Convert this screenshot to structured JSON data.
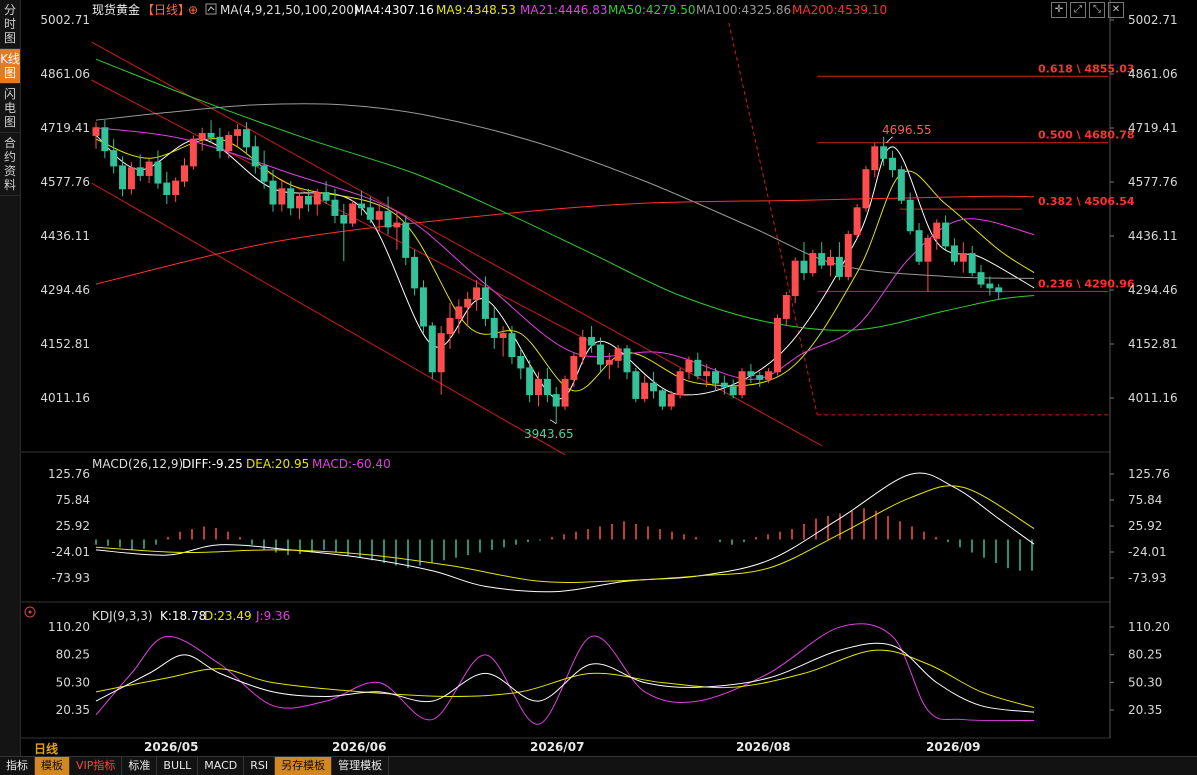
{
  "sidebar": {
    "tabs": [
      "分时图",
      "K线图",
      "闪电图",
      "合约资料"
    ],
    "active": 1
  },
  "header": {
    "symbol": "现货黄金",
    "period": "【日线】",
    "ma_params": "MA(4,9,21,50,100,200)",
    "ma": [
      {
        "label": "MA4:4307.16",
        "color": "#ffffff"
      },
      {
        "label": "MA9:4348.53",
        "color": "#e6e600"
      },
      {
        "label": "MA21:4446.83",
        "color": "#e040e0"
      },
      {
        "label": "MA50:4279.50",
        "color": "#33cc33"
      },
      {
        "label": "MA100:4325.86",
        "color": "#9a9a9a"
      },
      {
        "label": "MA200:4539.10",
        "color": "#ff3030"
      }
    ]
  },
  "top_icons": [
    "crosshair-icon",
    "expand-icon",
    "collapse-icon",
    "close-icon"
  ],
  "main_axis": {
    "ticks": [
      "5002.71",
      "4861.06",
      "4719.41",
      "4577.76",
      "4436.11",
      "4294.46",
      "4152.81",
      "4011.16"
    ]
  },
  "annotations": {
    "high_label": "4696.55",
    "low_label": "3943.65"
  },
  "fib": [
    {
      "label": "0.618 \\ 4855.03",
      "value": 4855.03
    },
    {
      "label": "0.500 \\ 4680.78",
      "value": 4680.78
    },
    {
      "label": "0.382 \\ 4506.54",
      "value": 4506.54
    },
    {
      "label": "0.236 \\ 4290.96",
      "value": 4290.96
    }
  ],
  "macd": {
    "title": "MACD(26,12,9)",
    "diff": "DIFF:-9.25",
    "dea": "DEA:20.95",
    "macd": "MACD:-60.40",
    "ticks": [
      "125.76",
      "75.84",
      "25.92",
      "-24.01",
      "-73.93"
    ]
  },
  "kdj": {
    "title": "KDJ(9,3,3)",
    "k": "K:18.78",
    "d": "D:23.49",
    "j": "J:9.36",
    "ticks": [
      "110.20",
      "80.25",
      "50.30",
      "20.35"
    ]
  },
  "x_labels": [
    "2026/05",
    "2026/06",
    "2026/07",
    "2026/08",
    "2026/09"
  ],
  "period_label": "日线",
  "bottom_bar": [
    "指标",
    "模板",
    "VIP指标",
    "标准",
    "BULL",
    "MACD",
    "RSI",
    "另存模板",
    "管理模板"
  ],
  "chart_data": {
    "type": "candlestick",
    "title": "现货黄金【日线】",
    "ylim": [
      3943.65,
      5002.71
    ],
    "candles_ohlc": [
      [
        4700,
        4735,
        4665,
        4720
      ],
      [
        4720,
        4740,
        4640,
        4660
      ],
      [
        4660,
        4690,
        4600,
        4620
      ],
      [
        4620,
        4645,
        4540,
        4560
      ],
      [
        4560,
        4630,
        4545,
        4615
      ],
      [
        4615,
        4650,
        4580,
        4595
      ],
      [
        4595,
        4640,
        4575,
        4630
      ],
      [
        4630,
        4660,
        4560,
        4575
      ],
      [
        4575,
        4605,
        4520,
        4545
      ],
      [
        4545,
        4590,
        4525,
        4580
      ],
      [
        4580,
        4640,
        4565,
        4620
      ],
      [
        4620,
        4700,
        4610,
        4690
      ],
      [
        4690,
        4720,
        4660,
        4705
      ],
      [
        4705,
        4740,
        4680,
        4695
      ],
      [
        4695,
        4720,
        4640,
        4660
      ],
      [
        4660,
        4710,
        4640,
        4700
      ],
      [
        4700,
        4730,
        4670,
        4715
      ],
      [
        4715,
        4735,
        4650,
        4670
      ],
      [
        4670,
        4700,
        4600,
        4620
      ],
      [
        4620,
        4660,
        4560,
        4580
      ],
      [
        4580,
        4610,
        4500,
        4520
      ],
      [
        4520,
        4580,
        4500,
        4560
      ],
      [
        4560,
        4580,
        4490,
        4510
      ],
      [
        4510,
        4550,
        4480,
        4540
      ],
      [
        4540,
        4560,
        4500,
        4520
      ],
      [
        4520,
        4560,
        4490,
        4550
      ],
      [
        4550,
        4580,
        4520,
        4530
      ],
      [
        4530,
        4560,
        4470,
        4490
      ],
      [
        4490,
        4520,
        4370,
        4470
      ],
      [
        4470,
        4530,
        4460,
        4520
      ],
      [
        4520,
        4555,
        4490,
        4510
      ],
      [
        4510,
        4540,
        4470,
        4480
      ],
      [
        4480,
        4520,
        4450,
        4500
      ],
      [
        4500,
        4540,
        4440,
        4460
      ],
      [
        4460,
        4500,
        4400,
        4470
      ],
      [
        4470,
        4490,
        4360,
        4380
      ],
      [
        4380,
        4400,
        4280,
        4300
      ],
      [
        4300,
        4320,
        4180,
        4200
      ],
      [
        4200,
        4210,
        4060,
        4080
      ],
      [
        4080,
        4200,
        4020,
        4180
      ],
      [
        4180,
        4260,
        4140,
        4220
      ],
      [
        4220,
        4270,
        4180,
        4250
      ],
      [
        4250,
        4290,
        4200,
        4270
      ],
      [
        4270,
        4320,
        4240,
        4300
      ],
      [
        4300,
        4330,
        4200,
        4220
      ],
      [
        4220,
        4250,
        4140,
        4170
      ],
      [
        4170,
        4200,
        4120,
        4180
      ],
      [
        4180,
        4200,
        4100,
        4120
      ],
      [
        4120,
        4140,
        4060,
        4090
      ],
      [
        4090,
        4110,
        4000,
        4020
      ],
      [
        4020,
        4080,
        3990,
        4060
      ],
      [
        4060,
        4090,
        4000,
        4020
      ],
      [
        4020,
        4040,
        3943.65,
        3990
      ],
      [
        3990,
        4070,
        3980,
        4060
      ],
      [
        4060,
        4130,
        4040,
        4120
      ],
      [
        4120,
        4190,
        4100,
        4170
      ],
      [
        4170,
        4200,
        4130,
        4150
      ],
      [
        4150,
        4170,
        4080,
        4100
      ],
      [
        4100,
        4130,
        4060,
        4110
      ],
      [
        4110,
        4150,
        4090,
        4140
      ],
      [
        4140,
        4150,
        4060,
        4080
      ],
      [
        4080,
        4090,
        4000,
        4010
      ],
      [
        4010,
        4070,
        4000,
        4050
      ],
      [
        4050,
        4080,
        4010,
        4030
      ],
      [
        4030,
        4040,
        3980,
        3990
      ],
      [
        3990,
        4030,
        3980,
        4020
      ],
      [
        4020,
        4090,
        4010,
        4080
      ],
      [
        4080,
        4120,
        4060,
        4110
      ],
      [
        4110,
        4130,
        4060,
        4070
      ],
      [
        4070,
        4100,
        4040,
        4080
      ],
      [
        4080,
        4090,
        4030,
        4050
      ],
      [
        4050,
        4070,
        4020,
        4040
      ],
      [
        4040,
        4060,
        4010,
        4020
      ],
      [
        4020,
        4090,
        4010,
        4080
      ],
      [
        4080,
        4100,
        4050,
        4070
      ],
      [
        4070,
        4080,
        4040,
        4060
      ],
      [
        4060,
        4090,
        4050,
        4080
      ],
      [
        4080,
        4230,
        4070,
        4220
      ],
      [
        4220,
        4290,
        4200,
        4280
      ],
      [
        4280,
        4380,
        4260,
        4370
      ],
      [
        4370,
        4420,
        4320,
        4340
      ],
      [
        4340,
        4400,
        4330,
        4390
      ],
      [
        4390,
        4420,
        4350,
        4360
      ],
      [
        4360,
        4400,
        4330,
        4380
      ],
      [
        4380,
        4420,
        4320,
        4330
      ],
      [
        4330,
        4450,
        4320,
        4440
      ],
      [
        4440,
        4520,
        4430,
        4510
      ],
      [
        4510,
        4620,
        4500,
        4610
      ],
      [
        4610,
        4680,
        4590,
        4670
      ],
      [
        4670,
        4696.55,
        4620,
        4640
      ],
      [
        4640,
        4660,
        4590,
        4610
      ],
      [
        4610,
        4620,
        4520,
        4530
      ],
      [
        4530,
        4550,
        4440,
        4450
      ],
      [
        4450,
        4470,
        4360,
        4370
      ],
      [
        4370,
        4440,
        4290,
        4430
      ],
      [
        4430,
        4480,
        4400,
        4470
      ],
      [
        4470,
        4490,
        4400,
        4410
      ],
      [
        4410,
        4430,
        4360,
        4370
      ],
      [
        4370,
        4420,
        4340,
        4390
      ],
      [
        4390,
        4410,
        4330,
        4340
      ],
      [
        4340,
        4360,
        4300,
        4310
      ],
      [
        4310,
        4330,
        4280,
        4300
      ],
      [
        4300,
        4310,
        4270,
        4290
      ]
    ],
    "ma_series": [
      {
        "name": "MA4",
        "color": "#ffffff",
        "knots": [
          [
            0,
            4700
          ],
          [
            5,
            4610
          ],
          [
            12,
            4690
          ],
          [
            20,
            4560
          ],
          [
            30,
            4510
          ],
          [
            38,
            4150
          ],
          [
            44,
            4270
          ],
          [
            52,
            4010
          ],
          [
            57,
            4160
          ],
          [
            66,
            4020
          ],
          [
            77,
            4120
          ],
          [
            86,
            4430
          ],
          [
            90,
            4670
          ],
          [
            95,
            4420
          ],
          [
            100,
            4380
          ],
          [
            106,
            4300
          ]
        ]
      },
      {
        "name": "MA9",
        "color": "#e6e600",
        "knots": [
          [
            0,
            4690
          ],
          [
            6,
            4640
          ],
          [
            14,
            4690
          ],
          [
            22,
            4570
          ],
          [
            34,
            4490
          ],
          [
            42,
            4200
          ],
          [
            48,
            4180
          ],
          [
            54,
            4030
          ],
          [
            60,
            4130
          ],
          [
            68,
            4050
          ],
          [
            78,
            4080
          ],
          [
            86,
            4340
          ],
          [
            91,
            4600
          ],
          [
            96,
            4520
          ],
          [
            102,
            4400
          ],
          [
            106,
            4340
          ]
        ]
      },
      {
        "name": "MA21",
        "color": "#e040e0",
        "knots": [
          [
            0,
            4720
          ],
          [
            10,
            4690
          ],
          [
            22,
            4600
          ],
          [
            34,
            4500
          ],
          [
            44,
            4310
          ],
          [
            54,
            4130
          ],
          [
            64,
            4130
          ],
          [
            74,
            4060
          ],
          [
            80,
            4130
          ],
          [
            86,
            4200
          ],
          [
            92,
            4380
          ],
          [
            98,
            4480
          ],
          [
            106,
            4440
          ]
        ]
      },
      {
        "name": "MA50",
        "color": "#33cc33",
        "knots": [
          [
            0,
            4900
          ],
          [
            12,
            4790
          ],
          [
            24,
            4690
          ],
          [
            36,
            4600
          ],
          [
            46,
            4500
          ],
          [
            56,
            4390
          ],
          [
            66,
            4280
          ],
          [
            76,
            4210
          ],
          [
            86,
            4190
          ],
          [
            96,
            4240
          ],
          [
            102,
            4270
          ],
          [
            106,
            4280
          ]
        ]
      },
      {
        "name": "MA100",
        "color": "#9a9a9a",
        "knots": [
          [
            0,
            4740
          ],
          [
            8,
            4760
          ],
          [
            18,
            4780
          ],
          [
            28,
            4780
          ],
          [
            38,
            4750
          ],
          [
            50,
            4680
          ],
          [
            62,
            4580
          ],
          [
            74,
            4460
          ],
          [
            84,
            4360
          ],
          [
            96,
            4330
          ],
          [
            106,
            4325
          ]
        ]
      },
      {
        "name": "MA200",
        "color": "#ff3030",
        "knots": [
          [
            0,
            4310
          ],
          [
            20,
            4420
          ],
          [
            40,
            4480
          ],
          [
            60,
            4520
          ],
          [
            80,
            4530
          ],
          [
            100,
            4540
          ],
          [
            106,
            4539
          ]
        ]
      }
    ],
    "macd_series": {
      "diff_knots": [
        [
          0,
          -20
        ],
        [
          8,
          -30
        ],
        [
          14,
          -10
        ],
        [
          22,
          -20
        ],
        [
          30,
          -35
        ],
        [
          38,
          -60
        ],
        [
          44,
          -90
        ],
        [
          52,
          -100
        ],
        [
          60,
          -80
        ],
        [
          68,
          -70
        ],
        [
          76,
          -40
        ],
        [
          84,
          40
        ],
        [
          92,
          125
        ],
        [
          97,
          100
        ],
        [
          102,
          40
        ],
        [
          106,
          -9
        ]
      ],
      "dea_knots": [
        [
          0,
          -15
        ],
        [
          10,
          -25
        ],
        [
          20,
          -20
        ],
        [
          30,
          -28
        ],
        [
          40,
          -50
        ],
        [
          50,
          -80
        ],
        [
          58,
          -80
        ],
        [
          68,
          -70
        ],
        [
          76,
          -55
        ],
        [
          84,
          10
        ],
        [
          92,
          80
        ],
        [
          98,
          100
        ],
        [
          106,
          21
        ]
      ],
      "hist_bars": [
        -10,
        -12,
        -15,
        -20,
        -18,
        -10,
        5,
        15,
        20,
        25,
        22,
        15,
        5,
        -10,
        -20,
        -25,
        -30,
        -28,
        -25,
        -20,
        -25,
        -30,
        -35,
        -40,
        -45,
        -50,
        -55,
        -50,
        -45,
        -40,
        -35,
        -30,
        -25,
        -20,
        -15,
        -10,
        -5,
        -2,
        5,
        10,
        15,
        20,
        25,
        30,
        35,
        30,
        25,
        20,
        15,
        10,
        5,
        0,
        -5,
        -10,
        -5,
        5,
        10,
        15,
        20,
        30,
        40,
        45,
        50,
        55,
        60,
        55,
        45,
        35,
        25,
        15,
        5,
        -5,
        -15,
        -25,
        -35,
        -45,
        -55,
        -60,
        -60
      ]
    },
    "kdj_series": {
      "k_knots": [
        [
          0,
          30
        ],
        [
          6,
          60
        ],
        [
          10,
          80
        ],
        [
          14,
          60
        ],
        [
          20,
          40
        ],
        [
          26,
          35
        ],
        [
          32,
          40
        ],
        [
          38,
          30
        ],
        [
          44,
          60
        ],
        [
          50,
          30
        ],
        [
          56,
          70
        ],
        [
          62,
          50
        ],
        [
          68,
          45
        ],
        [
          76,
          55
        ],
        [
          84,
          85
        ],
        [
          90,
          90
        ],
        [
          95,
          50
        ],
        [
          100,
          25
        ],
        [
          106,
          18
        ]
      ],
      "d_knots": [
        [
          0,
          40
        ],
        [
          8,
          55
        ],
        [
          14,
          65
        ],
        [
          20,
          50
        ],
        [
          30,
          40
        ],
        [
          40,
          35
        ],
        [
          48,
          40
        ],
        [
          56,
          60
        ],
        [
          64,
          50
        ],
        [
          72,
          45
        ],
        [
          80,
          60
        ],
        [
          88,
          85
        ],
        [
          94,
          70
        ],
        [
          100,
          40
        ],
        [
          106,
          23
        ]
      ],
      "j_knots": [
        [
          0,
          15
        ],
        [
          4,
          60
        ],
        [
          8,
          100
        ],
        [
          14,
          70
        ],
        [
          20,
          25
        ],
        [
          26,
          30
        ],
        [
          32,
          50
        ],
        [
          38,
          10
        ],
        [
          44,
          80
        ],
        [
          50,
          5
        ],
        [
          56,
          100
        ],
        [
          62,
          40
        ],
        [
          68,
          30
        ],
        [
          76,
          60
        ],
        [
          84,
          110
        ],
        [
          90,
          100
        ],
        [
          94,
          20
        ],
        [
          98,
          10
        ],
        [
          106,
          9
        ]
      ]
    }
  }
}
